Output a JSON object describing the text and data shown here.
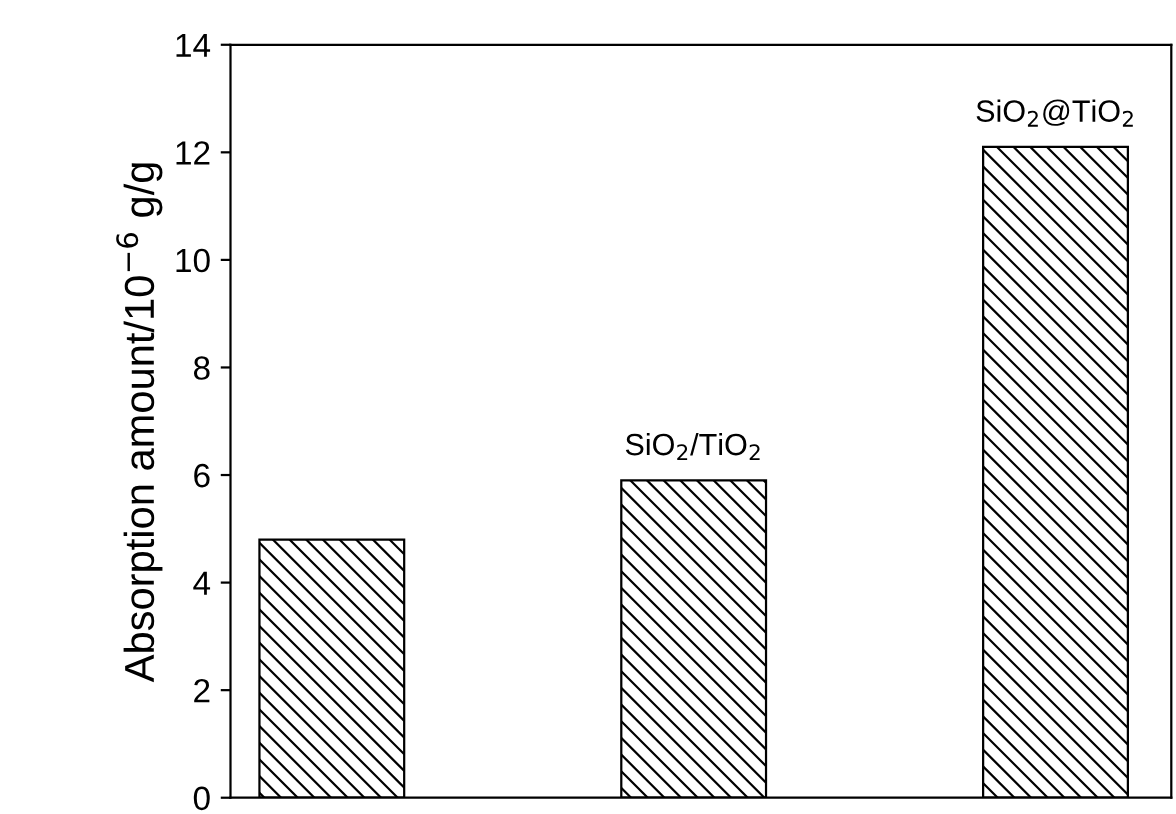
{
  "chart_data": {
    "type": "bar",
    "ylabel": "Absorption amount/10$^{−6}$ g/g",
    "categories": [
      null,
      "SiO$_{2}$/TiO$_{2}$",
      "SiO$_{2}$@TiO$_{2}$"
    ],
    "values": [
      4.8,
      5.9,
      12.1
    ],
    "color": "#000000",
    "ylim": [
      0,
      14
    ],
    "yticks": [
      0,
      2,
      4,
      6,
      8,
      10,
      12,
      14
    ],
    "grid": false,
    "legend": false
  }
}
